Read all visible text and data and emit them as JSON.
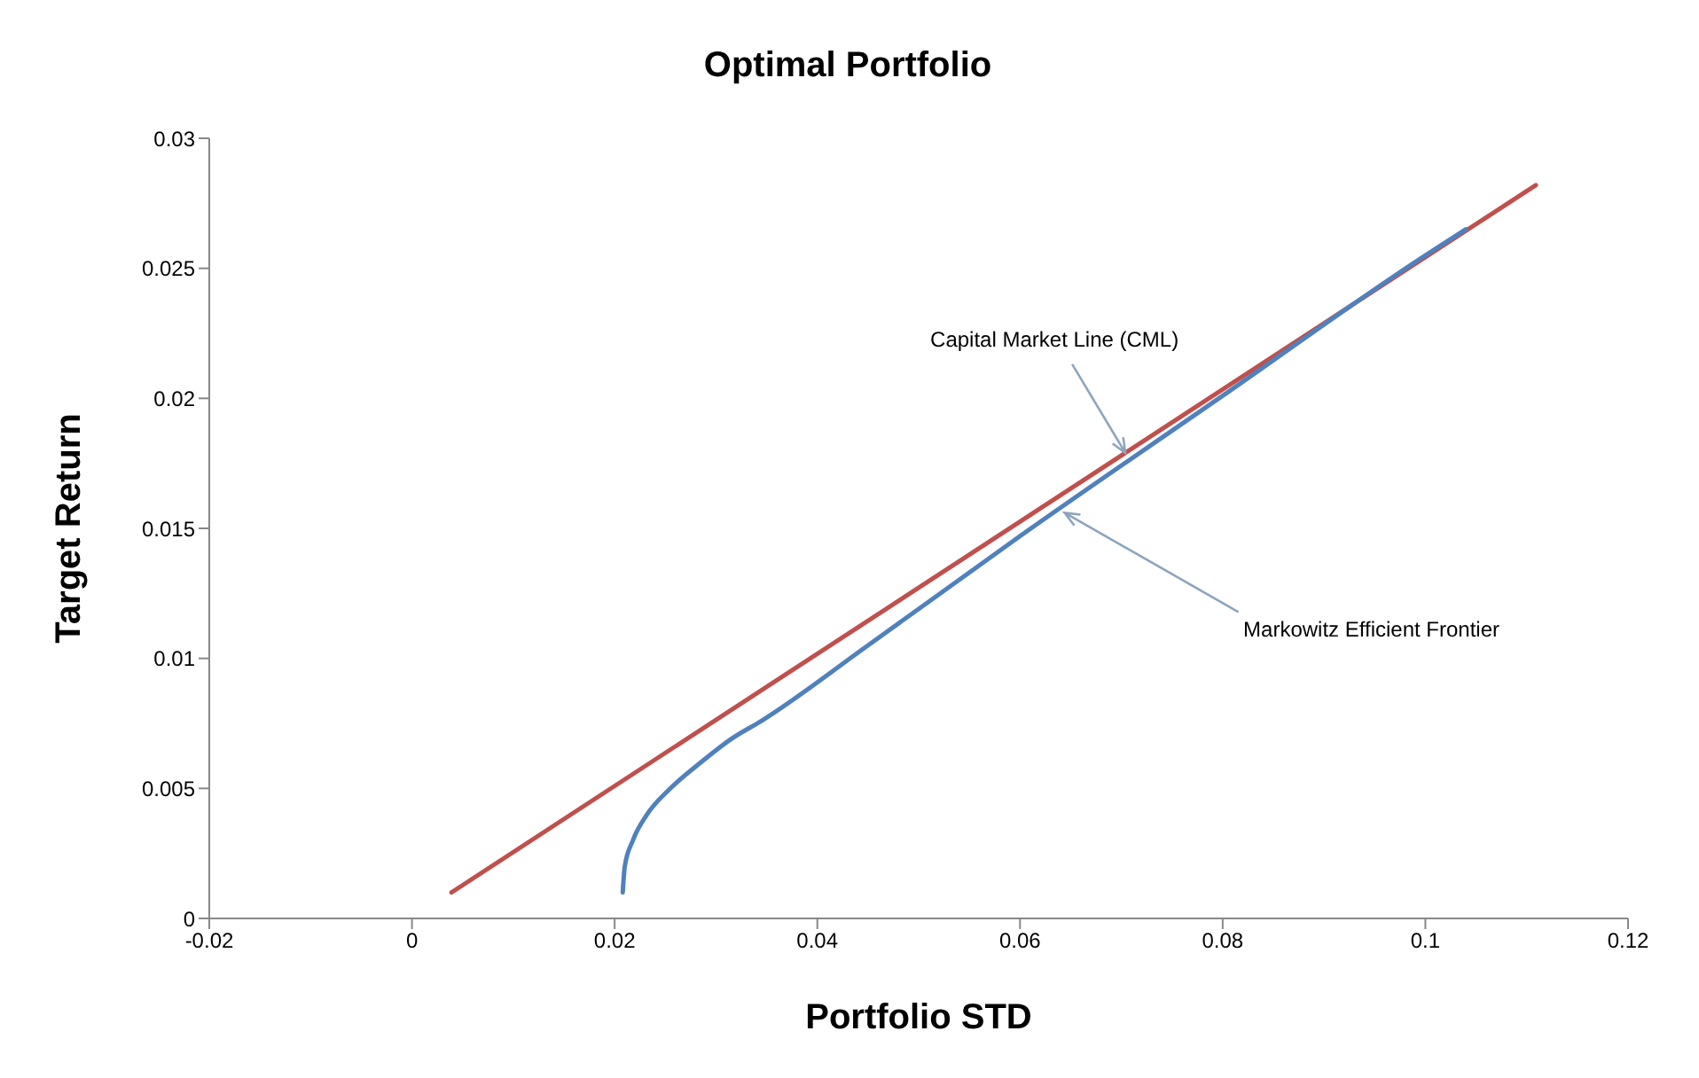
{
  "chart_data": {
    "type": "line",
    "title": "Optimal Portfolio",
    "xlabel": "Portfolio STD",
    "ylabel": "Target Return",
    "series": [
      {
        "color": "#c0504d",
        "x": [
          0.0039,
          0.1109
        ],
        "values": [
          0.001,
          0.0282
        ]
      },
      {
        "color": "#4f81bd",
        "x": [
          0.0208,
          0.021,
          0.0218,
          0.0232,
          0.0255,
          0.0285,
          0.0315,
          0.0345,
          0.045,
          0.06,
          0.08,
          0.1,
          0.104
        ],
        "values": [
          0.001,
          0.002,
          0.003,
          0.004,
          0.005,
          0.006,
          0.0069,
          0.0076,
          0.0105,
          0.0147,
          0.0201,
          0.0255,
          0.0265
        ]
      }
    ],
    "annotations": [
      {
        "text": "Capital Market Line (CML)",
        "x": 0.0704,
        "y": 0.0179
      },
      {
        "text": "Markowitz Efficient Frontier",
        "x": 0.0644,
        "y": 0.0156
      }
    ],
    "xlim": [
      -0.02,
      0.12
    ],
    "xticks": [
      -0.02,
      0,
      0.02,
      0.04,
      0.06,
      0.08,
      0.1,
      0.12
    ],
    "ylim": [
      0,
      0.03
    ],
    "yticks": [
      0,
      0.005,
      0.01,
      0.015,
      0.02,
      0.025,
      0.03
    ],
    "grid": false,
    "marker": "none",
    "line_style": "solid"
  }
}
